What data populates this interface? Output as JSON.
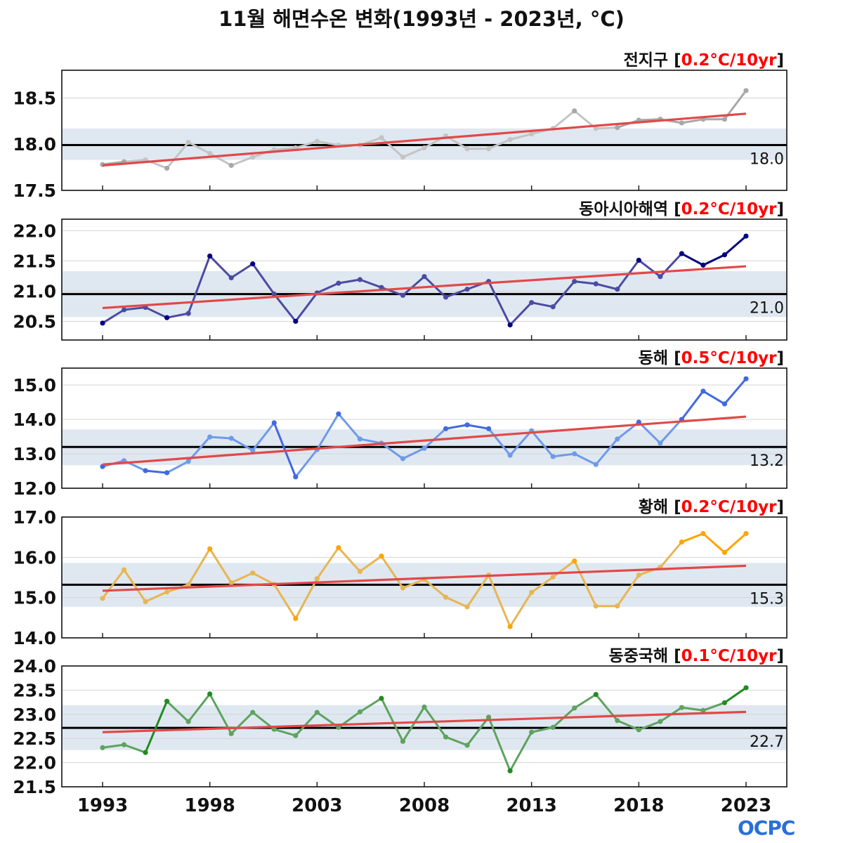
{
  "logo": "OCPC",
  "chart_data": {
    "type": "line",
    "title": "11월 해면수온 변화(1993년 - 2023년, °C)",
    "x": [
      1993,
      1994,
      1995,
      1996,
      1997,
      1998,
      1999,
      2000,
      2001,
      2002,
      2003,
      2004,
      2005,
      2006,
      2007,
      2008,
      2009,
      2010,
      2011,
      2012,
      2013,
      2014,
      2015,
      2016,
      2017,
      2018,
      2019,
      2020,
      2021,
      2022,
      2023
    ],
    "xticks": [
      1993,
      1998,
      2003,
      2008,
      2013,
      2018,
      2023
    ],
    "xlim": [
      1991.1,
      2024.9
    ],
    "panels": [
      {
        "name": "전지구",
        "rate": "0.2°C/10yr",
        "ylim": [
          17.5,
          18.8
        ],
        "yticks": [
          "17.5",
          "18.0",
          "18.5"
        ],
        "mean": 17.99,
        "mean_label": "18.0",
        "band": [
          17.83,
          18.17
        ],
        "trend": [
          17.77,
          18.33
        ],
        "color": "#c4c4c4",
        "dark": "#a8a8a8",
        "values": [
          17.78,
          17.81,
          17.83,
          17.74,
          18.02,
          17.9,
          17.77,
          17.86,
          17.94,
          17.96,
          18.03,
          17.99,
          17.99,
          18.07,
          17.86,
          17.96,
          18.09,
          17.95,
          17.95,
          18.05,
          18.11,
          18.17,
          18.36,
          18.17,
          18.18,
          18.26,
          18.27,
          18.23,
          18.27,
          18.27,
          18.58
        ]
      },
      {
        "name": "동아시아해역",
        "rate": "0.2°C/10yr",
        "ylim": [
          20.19,
          22.19
        ],
        "yticks": [
          "20.5",
          "21.0",
          "21.5",
          "22.0"
        ],
        "mean": 20.95,
        "mean_label": "21.0",
        "band": [
          20.57,
          21.33
        ],
        "trend": [
          20.72,
          21.41
        ],
        "color": "#4b4ba3",
        "dark": "#000080",
        "values": [
          20.47,
          20.69,
          20.73,
          20.56,
          20.63,
          21.58,
          21.22,
          21.45,
          20.95,
          20.5,
          20.97,
          21.13,
          21.19,
          21.06,
          20.93,
          21.24,
          20.9,
          21.03,
          21.16,
          20.44,
          20.81,
          20.74,
          21.16,
          21.12,
          21.03,
          21.51,
          21.24,
          21.62,
          21.43,
          21.6,
          21.91
        ]
      },
      {
        "name": "동해",
        "rate": "0.5°C/10yr",
        "ylim": [
          12.0,
          15.49
        ],
        "yticks": [
          "12.0",
          "13.0",
          "14.0",
          "15.0"
        ],
        "mean": 13.2,
        "mean_label": "13.2",
        "band": [
          12.67,
          13.71
        ],
        "trend": [
          12.69,
          14.08
        ],
        "color": "#6f9ae8",
        "dark": "#4169e1",
        "values": [
          12.63,
          12.8,
          12.51,
          12.45,
          12.78,
          13.49,
          13.45,
          13.1,
          13.9,
          12.33,
          13.12,
          14.16,
          13.43,
          13.31,
          12.86,
          13.16,
          13.73,
          13.84,
          13.73,
          12.96,
          13.67,
          12.92,
          13.0,
          12.69,
          13.43,
          13.92,
          13.31,
          14.0,
          14.82,
          14.45,
          15.18
        ]
      },
      {
        "name": "황해",
        "rate": "0.2°C/10yr",
        "ylim": [
          14.0,
          17.0
        ],
        "yticks": [
          "14.0",
          "15.0",
          "16.0",
          "17.0"
        ],
        "mean": 15.32,
        "mean_label": "15.3",
        "band": [
          14.77,
          15.86
        ],
        "trend": [
          15.17,
          15.79
        ],
        "color": "#e8b554",
        "dark": "#ffa500",
        "values": [
          14.98,
          15.69,
          14.9,
          15.14,
          15.32,
          16.21,
          15.37,
          15.61,
          15.33,
          14.48,
          15.47,
          16.24,
          15.65,
          16.03,
          15.24,
          15.45,
          15.01,
          14.77,
          15.56,
          14.28,
          15.13,
          15.51,
          15.91,
          14.79,
          14.79,
          15.56,
          15.75,
          16.38,
          16.59,
          16.12,
          16.59
        ]
      },
      {
        "name": "동중국해",
        "rate": "0.1°C/10yr",
        "ylim": [
          21.5,
          24.0
        ],
        "yticks": [
          "21.5",
          "22.0",
          "22.5",
          "23.0",
          "23.5",
          "24.0"
        ],
        "mean": 22.72,
        "mean_label": "22.7",
        "band": [
          22.26,
          23.19
        ],
        "trend": [
          22.63,
          23.05
        ],
        "color": "#5ea35e",
        "dark": "#228b22",
        "values": [
          22.31,
          22.37,
          22.21,
          23.27,
          22.85,
          23.42,
          22.6,
          23.04,
          22.69,
          22.56,
          23.04,
          22.73,
          23.05,
          23.33,
          22.44,
          23.15,
          22.53,
          22.36,
          22.94,
          21.83,
          22.63,
          22.73,
          23.13,
          23.41,
          22.87,
          22.68,
          22.85,
          23.14,
          23.08,
          23.24,
          23.55
        ]
      }
    ]
  }
}
